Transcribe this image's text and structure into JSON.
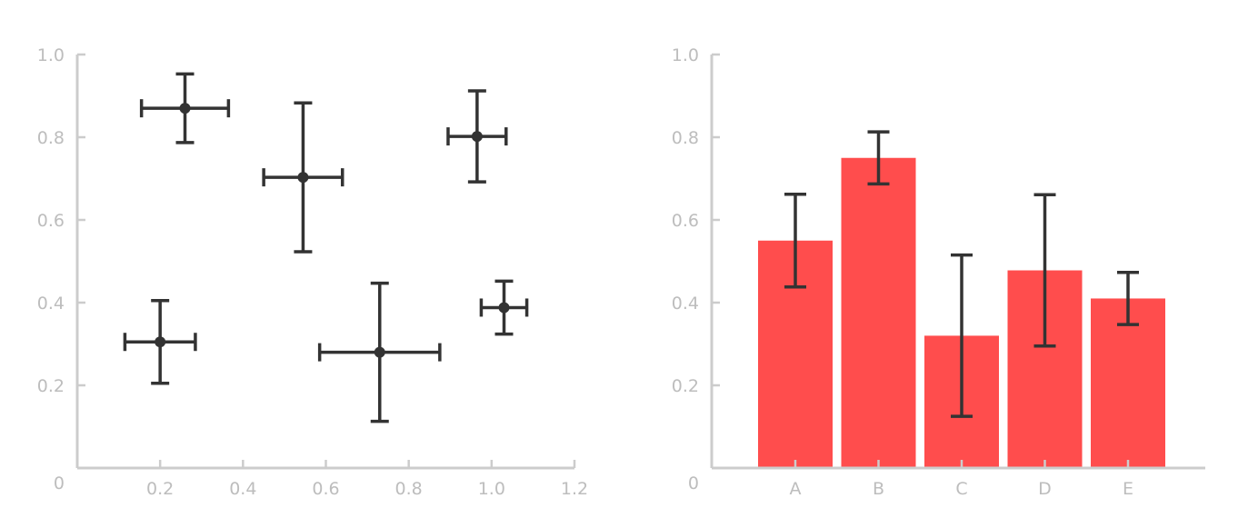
{
  "chart_data": [
    {
      "type": "scatter",
      "title": "",
      "xlabel": "",
      "ylabel": "",
      "xlim": [
        0,
        1.2
      ],
      "ylim": [
        0,
        1.0
      ],
      "xticks": [
        "0.2",
        "0.4",
        "0.6",
        "0.8",
        "1.0",
        "1.2"
      ],
      "yticks": [
        "0.2",
        "0.4",
        "0.6",
        "0.8",
        "1.0"
      ],
      "origin_label": "0",
      "points": [
        {
          "x": 0.26,
          "y": 0.87,
          "xerr": 0.105,
          "yerr": 0.083
        },
        {
          "x": 0.545,
          "y": 0.703,
          "xerr": 0.095,
          "yerr": 0.18
        },
        {
          "x": 0.965,
          "y": 0.802,
          "xerr": 0.07,
          "yerr": 0.11
        },
        {
          "x": 0.2,
          "y": 0.305,
          "xerr": 0.085,
          "yerr": 0.1
        },
        {
          "x": 0.73,
          "y": 0.28,
          "xerr": 0.145,
          "yerr": 0.167
        },
        {
          "x": 1.03,
          "y": 0.388,
          "xerr": 0.055,
          "yerr": 0.064
        }
      ],
      "grid": false,
      "colors": {
        "marker": "#333333",
        "axis": "#cccccc",
        "ticklabel": "#bdbdbd"
      }
    },
    {
      "type": "bar",
      "title": "",
      "xlabel": "",
      "ylabel": "",
      "categories": [
        "A",
        "B",
        "C",
        "D",
        "E"
      ],
      "values": [
        0.55,
        0.75,
        0.32,
        0.478,
        0.41
      ],
      "errors": [
        0.112,
        0.063,
        0.195,
        0.183,
        0.063
      ],
      "ylim": [
        0,
        1.0
      ],
      "yticks": [
        "0.2",
        "0.4",
        "0.6",
        "0.8",
        "1.0"
      ],
      "origin_label": "0",
      "grid": false,
      "colors": {
        "bar": "#ff4d4d",
        "errorbar": "#333333",
        "axis": "#cccccc",
        "ticklabel": "#bdbdbd"
      }
    }
  ]
}
